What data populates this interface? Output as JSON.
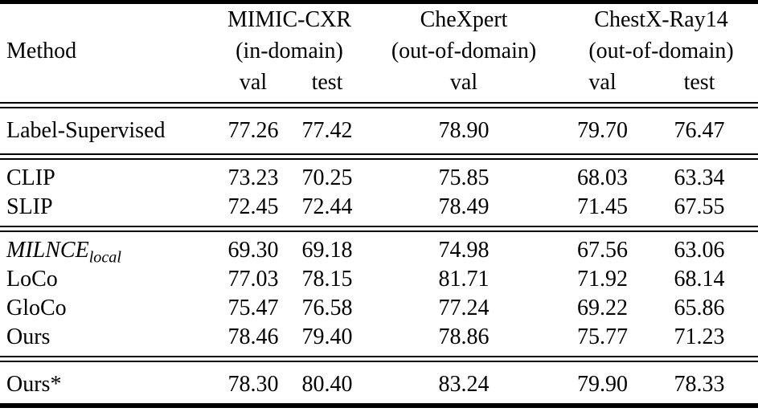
{
  "page": {
    "background_color": "#ffffff",
    "text_color": "#000000",
    "rule_color": "#000000"
  },
  "table": {
    "header": {
      "method_label": "Method",
      "groups": [
        {
          "name": "MIMIC-CXR",
          "domain": "(in-domain)",
          "subcols": [
            "val",
            "test"
          ]
        },
        {
          "name": "CheXpert",
          "domain": "(out-of-domain)",
          "subcols": [
            "val"
          ]
        },
        {
          "name": "ChestX-Ray14",
          "domain": "(out-of-domain)",
          "subcols": [
            "val",
            "test"
          ]
        }
      ]
    }
  },
  "chart_data": {
    "type": "table",
    "columns": [
      "Method",
      "MIMIC-CXR (in-domain) val",
      "MIMIC-CXR (in-domain) test",
      "CheXpert (out-of-domain) val",
      "ChestX-Ray14 (out-of-domain) val",
      "ChestX-Ray14 (out-of-domain) test"
    ],
    "sections": [
      {
        "rows": [
          {
            "method": "Label-Supervised",
            "values": [
              "77.26",
              "77.42",
              "78.90",
              "79.70",
              "76.47"
            ]
          }
        ]
      },
      {
        "rows": [
          {
            "method": "CLIP",
            "values": [
              "73.23",
              "70.25",
              "75.85",
              "68.03",
              "63.34"
            ]
          },
          {
            "method": "SLIP",
            "values": [
              "72.45",
              "72.44",
              "78.49",
              "71.45",
              "67.55"
            ]
          }
        ]
      },
      {
        "rows": [
          {
            "method": "MILNCE",
            "method_italic": true,
            "method_subscript": "local",
            "values": [
              "69.30",
              "69.18",
              "74.98",
              "67.56",
              "63.06"
            ]
          },
          {
            "method": "LoCo",
            "values": [
              "77.03",
              "78.15",
              "81.71",
              "71.92",
              "68.14"
            ]
          },
          {
            "method": "GloCo",
            "values": [
              "75.47",
              "76.58",
              "77.24",
              "69.22",
              "65.86"
            ]
          },
          {
            "method": "Ours",
            "values": [
              "78.46",
              "79.40",
              "78.86",
              "75.77",
              "71.23"
            ]
          }
        ]
      },
      {
        "rows": [
          {
            "method": "Ours*",
            "values": [
              "78.30",
              "80.40",
              "83.24",
              "79.90",
              "78.33"
            ]
          }
        ]
      }
    ]
  }
}
